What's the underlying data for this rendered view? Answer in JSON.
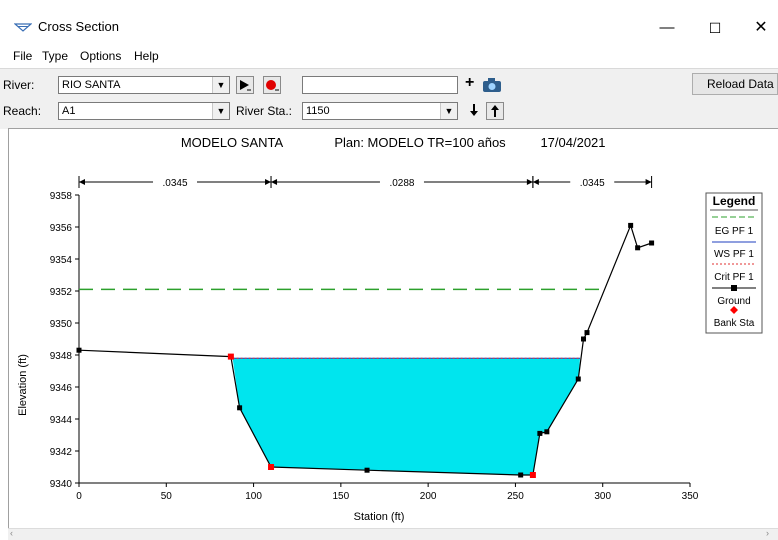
{
  "window": {
    "title": "Cross Section",
    "minimize": "—",
    "maximize": "☐",
    "close": "✕"
  },
  "menu": [
    "File",
    "Type",
    "Options",
    "Help"
  ],
  "toolbar": {
    "river_label": "River:",
    "river_value": "RIO SANTA",
    "reach_label": "Reach:",
    "reach_value": "A1",
    "river_sta_label": "River Sta.:",
    "river_sta_value": "1150",
    "text_field_value": "",
    "reload_label": "Reload Data",
    "icons": [
      "play-icon",
      "record-icon",
      "plus-icon",
      "camera-icon",
      "down-arrow-icon",
      "up-arrow-icon"
    ]
  },
  "colors": {
    "water": "#00e5ee",
    "eg_line": "#2ca02c",
    "ws_line": "#1f3fbf",
    "crit_line": "#e03030",
    "ground": "#000000",
    "bank": "#ff0000"
  },
  "chart_data": {
    "type": "line",
    "header": [
      "MODELO SANTA",
      "Plan: MODELO TR=100 años",
      "17/04/2021"
    ],
    "xlabel": "Station (ft)",
    "ylabel": "Elevation (ft)",
    "xlim": [
      0,
      350
    ],
    "ylim": [
      9340,
      9358
    ],
    "xticks": [
      0,
      50,
      100,
      150,
      200,
      250,
      300,
      350
    ],
    "yticks": [
      9340,
      9342,
      9344,
      9346,
      9348,
      9350,
      9352,
      9354,
      9356,
      9358
    ],
    "mannings": [
      {
        "label": ".0345",
        "from": 0,
        "to": 110
      },
      {
        "label": ".0288",
        "from": 110,
        "to": 260
      },
      {
        "label": ".0345",
        "from": 260,
        "to": 328
      }
    ],
    "legend": {
      "title": "Legend",
      "entries": [
        "EG PF 1",
        "WS PF 1",
        "Crit PF 1",
        "Ground",
        "Bank Sta"
      ]
    },
    "series": [
      {
        "name": "Ground",
        "points": [
          [
            0,
            9348.3
          ],
          [
            87,
            9347.9
          ],
          [
            92,
            9344.7
          ],
          [
            110,
            9341.0
          ],
          [
            165,
            9340.8
          ],
          [
            253,
            9340.5
          ],
          [
            260,
            9340.5
          ],
          [
            264,
            9343.1
          ],
          [
            268,
            9343.2
          ],
          [
            286,
            9346.5
          ],
          [
            289,
            9349.0
          ],
          [
            291,
            9349.4
          ],
          [
            316,
            9356.1
          ],
          [
            320,
            9354.7
          ],
          [
            328,
            9355.0
          ]
        ]
      },
      {
        "name": "EG PF 1",
        "elevation": 9352.1,
        "x": [
          0,
          300
        ]
      },
      {
        "name": "WS PF 1",
        "elevation": 9347.8,
        "x": [
          88,
          287
        ]
      },
      {
        "name": "Crit PF 1",
        "elevation": 9347.8,
        "x": [
          88,
          287
        ]
      },
      {
        "name": "Bank Sta",
        "points": [
          [
            87,
            9347.9
          ],
          [
            110,
            9341.0
          ],
          [
            260,
            9340.5
          ]
        ]
      }
    ]
  }
}
